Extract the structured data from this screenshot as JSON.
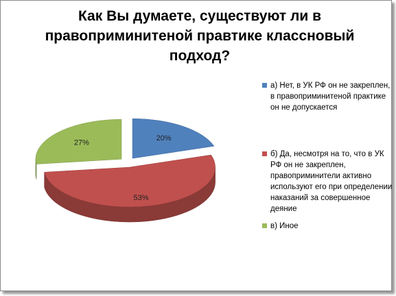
{
  "chart_data": {
    "type": "pie",
    "title": "Как Вы думаете, существуют ли в правоприминитеной правтике классновый подход?",
    "categories": [
      "а) Нет, в УК РФ он не закреплен, в правоприминитеной практике он не допускается",
      "б) Да, несмотря на то, что в УК РФ он не закреплен, правоприминители активно используют его при определении наказаний за совершенное деяние",
      "в) Иное"
    ],
    "values": [
      20,
      53,
      27
    ],
    "value_labels": [
      "20%",
      "53%",
      "27%"
    ],
    "colors": [
      "#4f81bd",
      "#c0504d",
      "#9bbb59"
    ]
  }
}
